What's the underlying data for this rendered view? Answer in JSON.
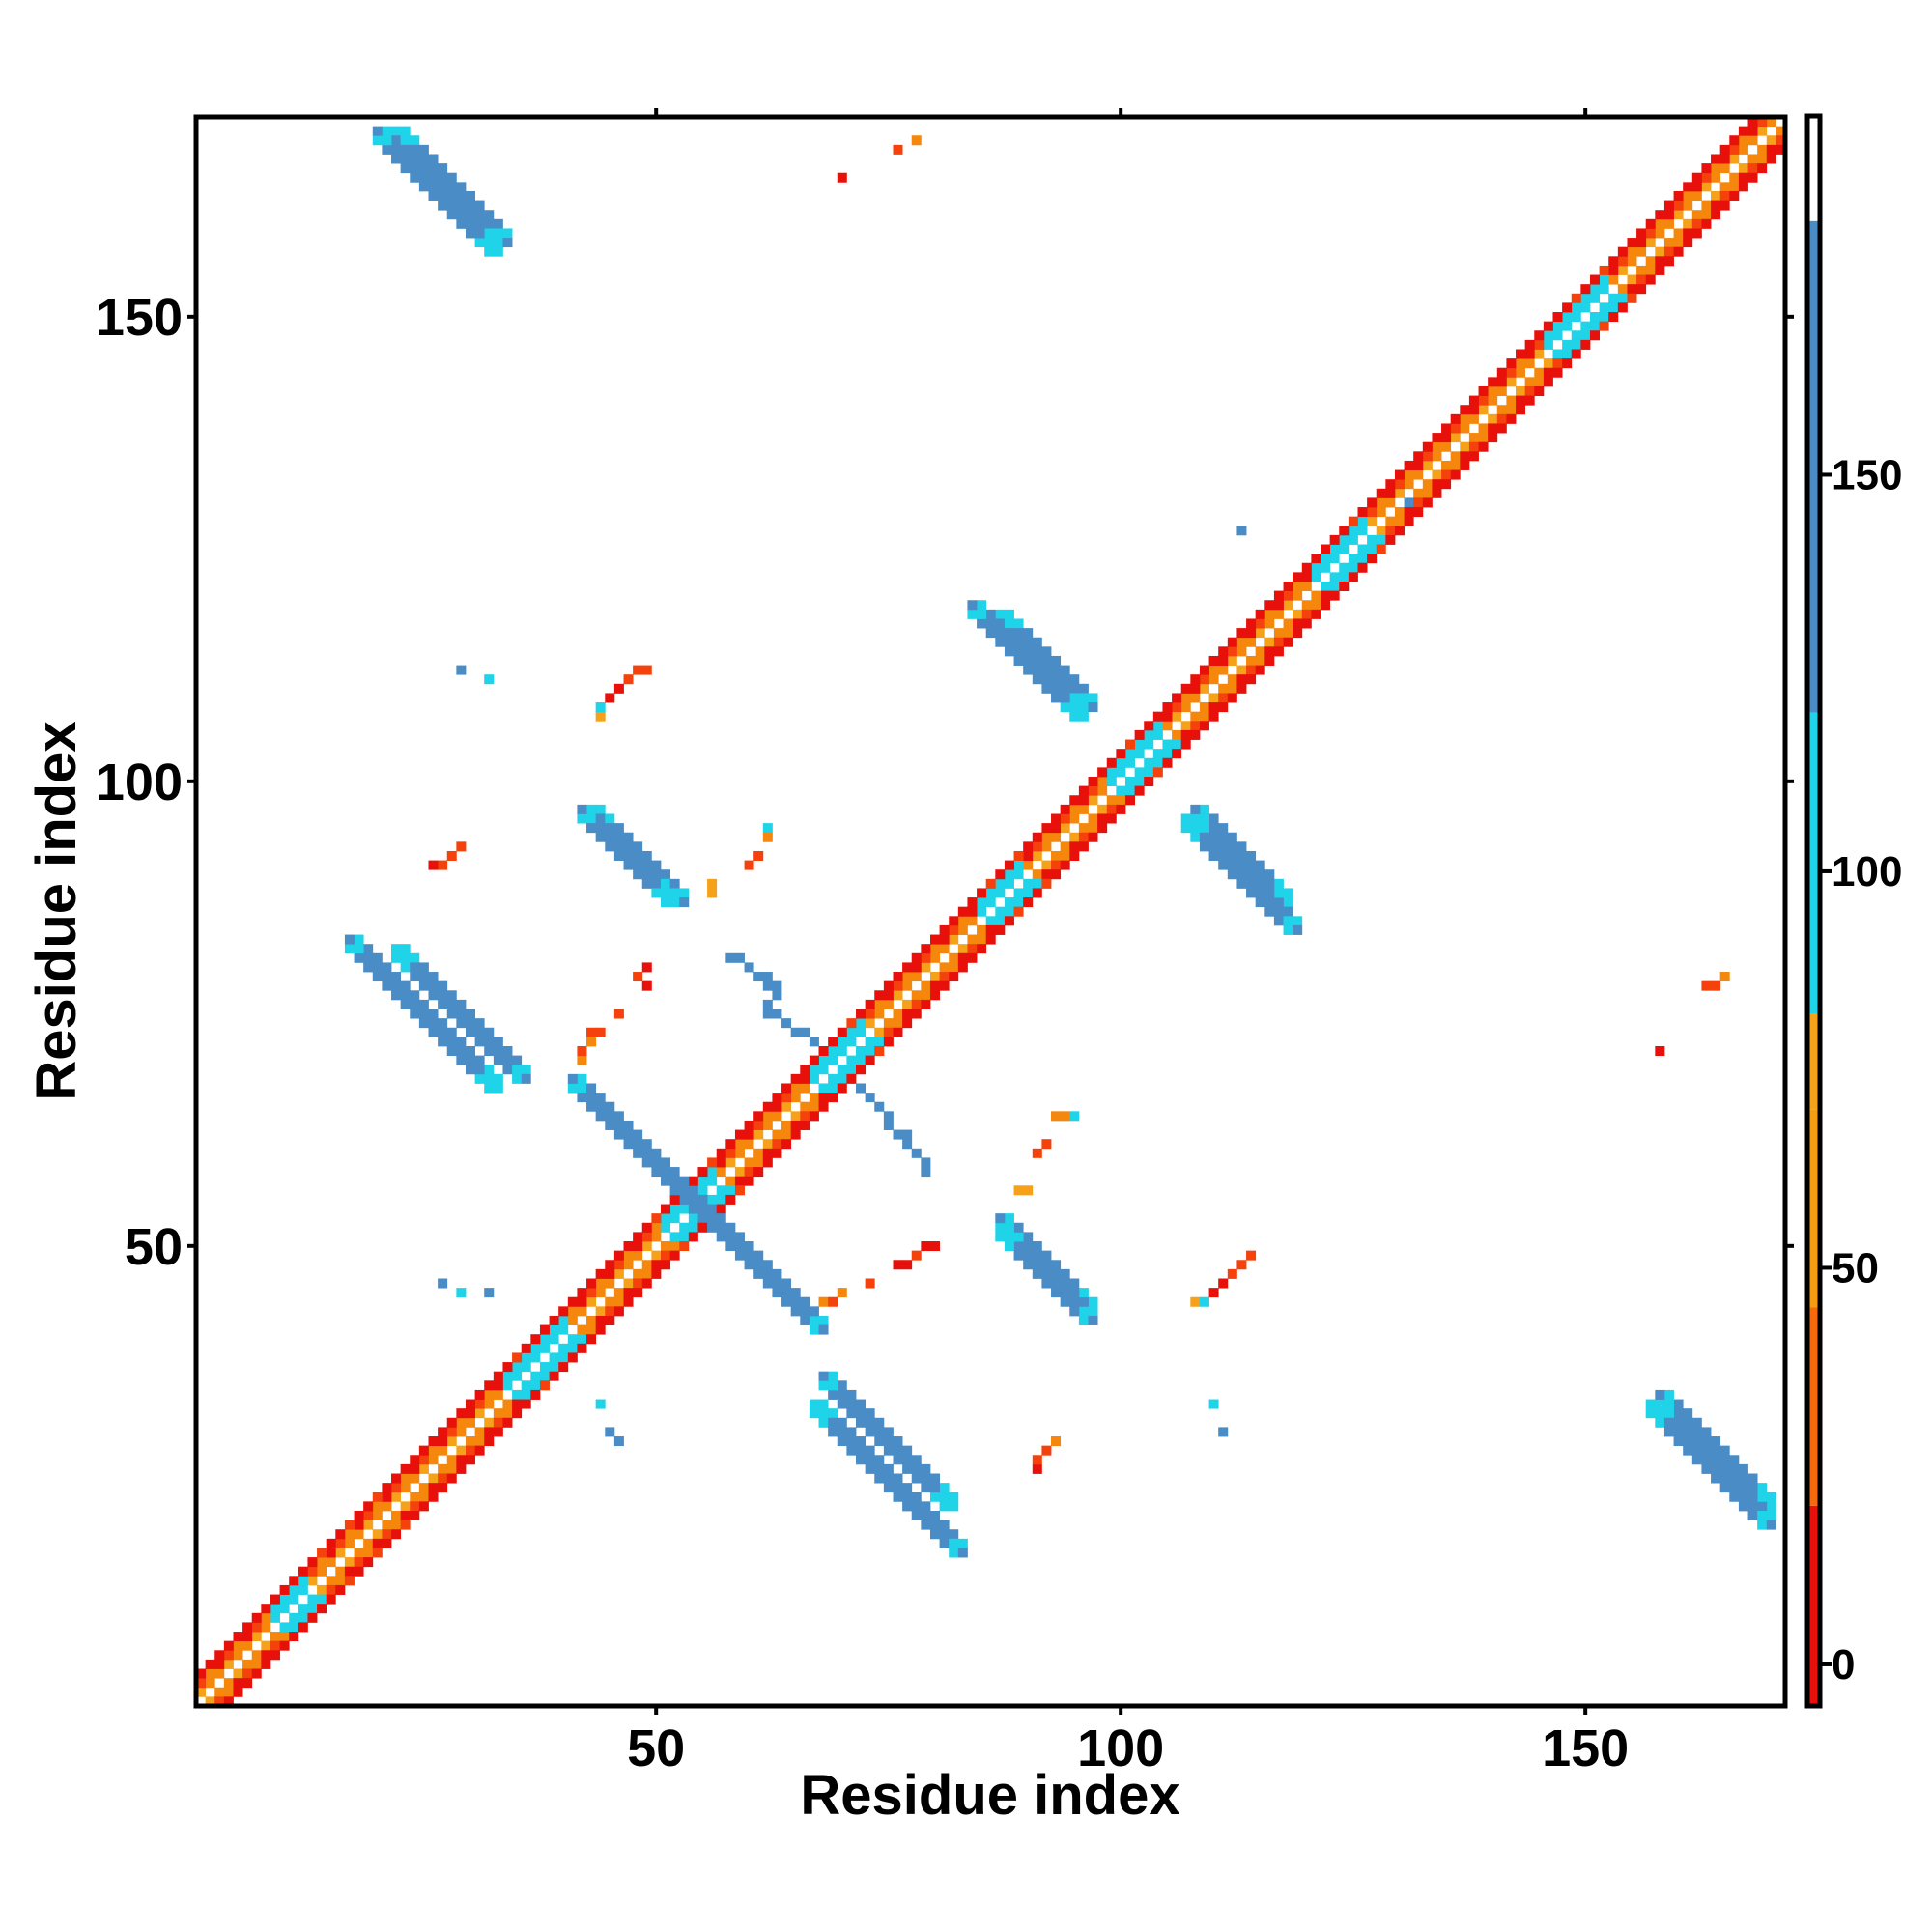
{
  "chart_data": {
    "type": "heatmap",
    "title": "",
    "xlabel": "Residue index",
    "ylabel": "Residue index",
    "xlim": [
      1,
      171
    ],
    "ylim": [
      1,
      171
    ],
    "x_ticks": [
      50,
      100,
      150
    ],
    "y_ticks": [
      50,
      100,
      150
    ],
    "colorbar": {
      "ticks": [
        0,
        50,
        100,
        150
      ],
      "range": [
        -5,
        195
      ],
      "bands": [
        {
          "from": -5,
          "to": 20,
          "color": "#E8100A"
        },
        {
          "from": 20,
          "to": 45,
          "color": "#F56A0C"
        },
        {
          "from": 45,
          "to": 70,
          "color": "#F59C10"
        },
        {
          "from": 70,
          "to": 82,
          "color": "#F5A21A"
        },
        {
          "from": 82,
          "to": 120,
          "color": "#1FD3E8"
        },
        {
          "from": 120,
          "to": 182,
          "color": "#4A8DC6"
        },
        {
          "from": 182,
          "to": 195,
          "color": "#FFFFFF"
        }
      ]
    },
    "colors": {
      "red": "#E8100A",
      "orange_red": "#F5420C",
      "orange": "#F5870C",
      "light_orange": "#F5A21A",
      "cyan": "#1FD3E8",
      "blue": "#4A8DC6"
    },
    "diagonal_bands": [
      {
        "offset": 1,
        "from": 1,
        "to": 170,
        "pattern": [
          "orange",
          "light_orange",
          "orange"
        ]
      },
      {
        "offset": 2,
        "from": 1,
        "to": 169,
        "pattern": [
          "red",
          "orange_red",
          "orange"
        ]
      },
      {
        "offset": 3,
        "from": 1,
        "to": 168,
        "pattern": [
          "red",
          "red",
          "orange_red"
        ]
      }
    ],
    "helix_regions": [
      {
        "from": 1,
        "to": 12
      },
      {
        "from": 22,
        "to": 33
      },
      {
        "from": 38,
        "to": 49
      },
      {
        "from": 57,
        "to": 68
      },
      {
        "from": 72,
        "to": 84
      },
      {
        "from": 90,
        "to": 100
      },
      {
        "from": 103,
        "to": 124
      },
      {
        "from": 126,
        "to": 147
      },
      {
        "from": 155,
        "to": 170
      }
    ],
    "strand_regions": [
      {
        "from": 9,
        "to": 12
      },
      {
        "from": 34,
        "to": 40
      },
      {
        "from": 51,
        "to": 56
      },
      {
        "from": 67,
        "to": 72
      },
      {
        "from": 85,
        "to": 89
      },
      {
        "from": 99,
        "to": 104
      },
      {
        "from": 121,
        "to": 126
      },
      {
        "from": 146,
        "to": 152
      }
    ],
    "antiparallel_blocks": [
      {
        "i_start": 22,
        "j_start": 170,
        "length": 12,
        "width": 2
      },
      {
        "i_start": 22,
        "j_start": 82,
        "length": 14,
        "width": 2
      },
      {
        "i_start": 42,
        "j_start": 67,
        "length": 26,
        "width": 2
      },
      {
        "i_start": 43,
        "j_start": 97,
        "length": 10,
        "width": 2
      },
      {
        "i_start": 67,
        "j_start": 33,
        "length": 16,
        "width": 2
      },
      {
        "i_start": 87,
        "j_start": 118,
        "length": 10,
        "width": 2
      },
      {
        "i_start": 87,
        "j_start": 52,
        "length": 10,
        "width": 2
      },
      {
        "i_start": 107,
        "j_start": 96,
        "length": 12,
        "width": 2
      },
      {
        "i_start": 157,
        "j_start": 33,
        "length": 13,
        "width": 2
      }
    ],
    "scattered_contacts": [
      {
        "i": 70,
        "j": 165,
        "c": "red"
      },
      {
        "i": 76,
        "j": 168,
        "c": "orange_red"
      },
      {
        "i": 78,
        "j": 169,
        "c": "orange"
      },
      {
        "i": 131,
        "j": 130,
        "c": "blue"
      },
      {
        "i": 113,
        "j": 127,
        "c": "blue"
      },
      {
        "i": 29,
        "j": 112,
        "c": "blue"
      },
      {
        "i": 32,
        "j": 111,
        "c": "cyan"
      },
      {
        "i": 44,
        "j": 107,
        "c": "light_orange"
      },
      {
        "i": 44,
        "j": 108,
        "c": "cyan"
      },
      {
        "i": 45,
        "j": 109,
        "c": "red"
      },
      {
        "i": 46,
        "j": 110,
        "c": "red"
      },
      {
        "i": 47,
        "j": 111,
        "c": "orange_red"
      },
      {
        "i": 48,
        "j": 112,
        "c": "orange_red"
      },
      {
        "i": 49,
        "j": 112,
        "c": "orange_red"
      },
      {
        "i": 27,
        "j": 91,
        "c": "orange_red"
      },
      {
        "i": 28,
        "j": 92,
        "c": "orange_red"
      },
      {
        "i": 29,
        "j": 93,
        "c": "orange_red"
      },
      {
        "i": 26,
        "j": 91,
        "c": "red"
      },
      {
        "i": 62,
        "j": 95,
        "c": "cyan"
      },
      {
        "i": 62,
        "j": 94,
        "c": "orange"
      },
      {
        "i": 60,
        "j": 91,
        "c": "orange_red"
      },
      {
        "i": 61,
        "j": 92,
        "c": "orange_red"
      },
      {
        "i": 56,
        "j": 89,
        "c": "light_orange"
      },
      {
        "i": 56,
        "j": 88,
        "c": "light_orange"
      },
      {
        "i": 48,
        "j": 79,
        "c": "orange_red"
      },
      {
        "i": 49,
        "j": 80,
        "c": "red"
      },
      {
        "i": 49,
        "j": 78,
        "c": "red"
      },
      {
        "i": 158,
        "j": 71,
        "c": "red"
      },
      {
        "i": 163,
        "j": 78,
        "c": "orange_red"
      },
      {
        "i": 164,
        "j": 78,
        "c": "orange_red"
      },
      {
        "i": 165,
        "j": 79,
        "c": "orange"
      },
      {
        "i": 93,
        "j": 64,
        "c": "orange"
      },
      {
        "i": 94,
        "j": 64,
        "c": "orange"
      },
      {
        "i": 95,
        "j": 64,
        "c": "cyan"
      },
      {
        "i": 91,
        "j": 60,
        "c": "orange_red"
      },
      {
        "i": 92,
        "j": 61,
        "c": "orange_red"
      },
      {
        "i": 89,
        "j": 56,
        "c": "light_orange"
      },
      {
        "i": 90,
        "j": 56,
        "c": "light_orange"
      },
      {
        "i": 78,
        "j": 49,
        "c": "orange_red"
      },
      {
        "i": 79,
        "j": 50,
        "c": "red"
      },
      {
        "i": 80,
        "j": 50,
        "c": "red"
      },
      {
        "i": 76,
        "j": 48,
        "c": "red"
      },
      {
        "i": 77,
        "j": 48,
        "c": "red"
      },
      {
        "i": 108,
        "j": 44,
        "c": "light_orange"
      },
      {
        "i": 109,
        "j": 44,
        "c": "cyan"
      },
      {
        "i": 110,
        "j": 45,
        "c": "red"
      },
      {
        "i": 111,
        "j": 46,
        "c": "red"
      },
      {
        "i": 112,
        "j": 47,
        "c": "orange_red"
      },
      {
        "i": 113,
        "j": 48,
        "c": "orange_red"
      },
      {
        "i": 114,
        "j": 49,
        "c": "orange_red"
      },
      {
        "i": 27,
        "j": 46,
        "c": "blue"
      },
      {
        "i": 29,
        "j": 45,
        "c": "cyan"
      },
      {
        "i": 32,
        "j": 45,
        "c": "blue"
      },
      {
        "i": 44,
        "j": 33,
        "c": "cyan"
      },
      {
        "i": 45,
        "j": 30,
        "c": "blue"
      },
      {
        "i": 46,
        "j": 29,
        "c": "blue"
      },
      {
        "i": 110,
        "j": 33,
        "c": "cyan"
      },
      {
        "i": 111,
        "j": 30,
        "c": "blue"
      },
      {
        "i": 91,
        "j": 26,
        "c": "red"
      },
      {
        "i": 91,
        "j": 27,
        "c": "orange_red"
      },
      {
        "i": 92,
        "j": 28,
        "c": "orange_red"
      },
      {
        "i": 93,
        "j": 29,
        "c": "orange"
      },
      {
        "i": 43,
        "j": 73,
        "c": "orange_red"
      },
      {
        "i": 44,
        "j": 73,
        "c": "orange_red"
      },
      {
        "i": 46,
        "j": 75,
        "c": "orange_red"
      },
      {
        "i": 43,
        "j": 72,
        "c": "orange"
      },
      {
        "i": 42,
        "j": 70,
        "c": "orange"
      },
      {
        "i": 42,
        "j": 71,
        "c": "orange_red"
      },
      {
        "i": 68,
        "j": 44,
        "c": "orange"
      },
      {
        "i": 69,
        "j": 44,
        "c": "orange_red"
      },
      {
        "i": 70,
        "j": 45,
        "c": "orange"
      },
      {
        "i": 73,
        "j": 46,
        "c": "orange_red"
      }
    ],
    "loop_traces": [
      {
        "points": [
          [
            58,
            81
          ],
          [
            59,
            81
          ],
          [
            60,
            80
          ],
          [
            61,
            79
          ],
          [
            62,
            79
          ],
          [
            62,
            78
          ],
          [
            63,
            78
          ],
          [
            63,
            77
          ],
          [
            62,
            76
          ],
          [
            62,
            75
          ],
          [
            63,
            75
          ],
          [
            64,
            74
          ],
          [
            65,
            73
          ],
          [
            66,
            73
          ],
          [
            67,
            72
          ]
        ],
        "c": "blue"
      },
      {
        "points": [
          [
            72,
            67
          ],
          [
            73,
            66
          ],
          [
            74,
            65
          ],
          [
            75,
            64
          ],
          [
            75,
            63
          ],
          [
            76,
            62
          ],
          [
            77,
            62
          ],
          [
            77,
            61
          ],
          [
            78,
            60
          ],
          [
            79,
            59
          ],
          [
            79,
            58
          ]
        ],
        "c": "blue"
      }
    ]
  }
}
